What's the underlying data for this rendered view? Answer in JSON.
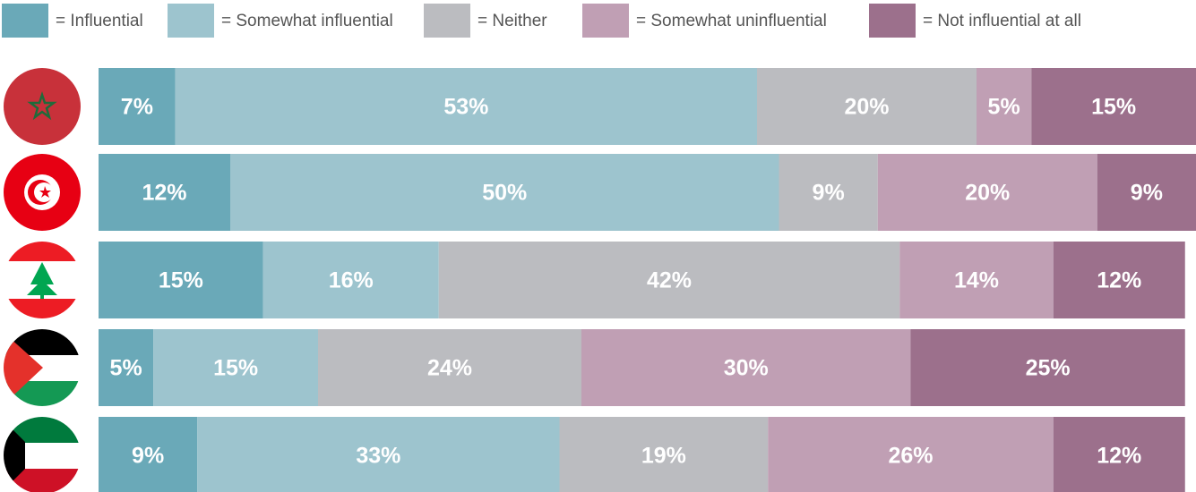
{
  "chart_data": {
    "type": "stacked-bar-horizontal",
    "categories": [
      null,
      null,
      null,
      null,
      null
    ],
    "xlim": [
      0,
      100
    ],
    "series": [
      {
        "name": "= Influential",
        "color": "#6aa9b8",
        "values": [
          7,
          12,
          15,
          5,
          9
        ],
        "value_labels": [
          "7%",
          "12%",
          "15%",
          "5%",
          "9%"
        ]
      },
      {
        "name": "= Somewhat influential",
        "color": "#9dc4ce",
        "values": [
          53,
          50,
          16,
          15,
          33
        ],
        "value_labels": [
          "53%",
          "50%",
          "16%",
          "15%",
          "33%"
        ]
      },
      {
        "name": "= Neither",
        "color": "#bbbcc0",
        "values": [
          20,
          9,
          42,
          24,
          19
        ],
        "value_labels": [
          "20%",
          "9%",
          "42%",
          "24%",
          "19%"
        ]
      },
      {
        "name": "= Somewhat uninfluential",
        "color": "#c09fb4",
        "values": [
          5,
          20,
          14,
          30,
          26
        ],
        "value_labels": [
          "5%",
          "20%",
          "14%",
          "30%",
          "26%"
        ]
      },
      {
        "name": "= Not influential at all",
        "color": "#9c708c",
        "values": [
          15,
          9,
          12,
          25,
          12
        ],
        "value_labels": [
          "15%",
          "9%",
          "12%",
          "25%",
          "12%"
        ]
      }
    ]
  }
}
